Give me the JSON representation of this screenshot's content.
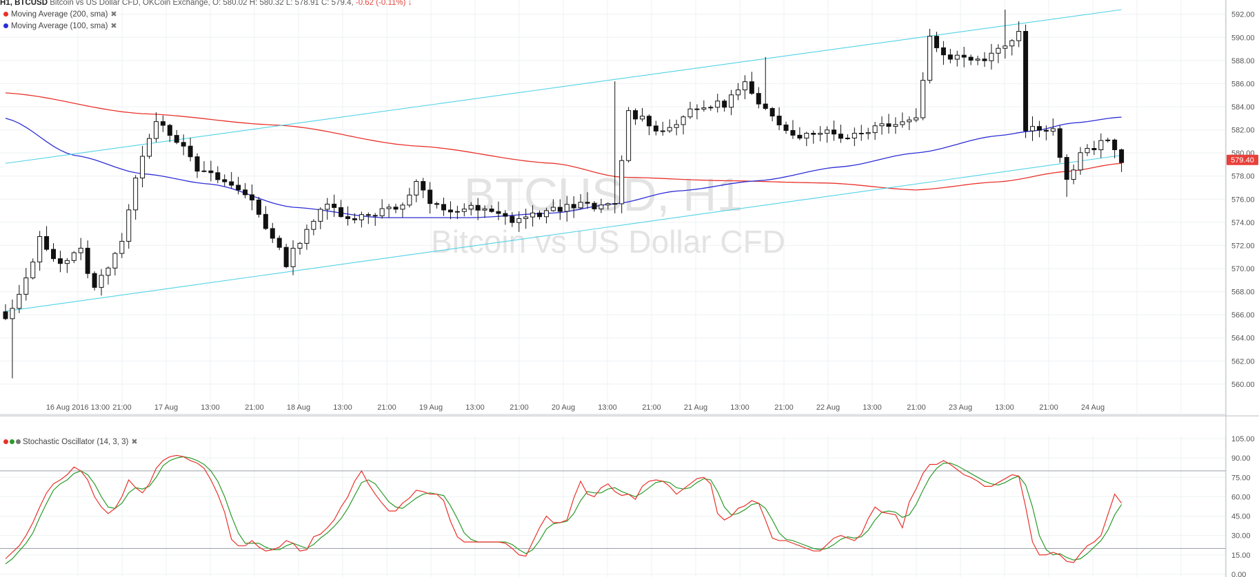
{
  "header": {
    "symbol": "H1, BTCUSD",
    "description": "Bitcoin vs US Dollar CFD, OKCoin Exchange,",
    "ohlc": "O: 580.02 H: 580.32 L: 578.91 C: 579.4,",
    "change": "-0.62 (-0.11%)",
    "change_arrow": "↓"
  },
  "legend": {
    "ma200": "Moving Average (200, sma)",
    "ma100": "Moving Average (100, sma)",
    "stoch": "Stochastic Oscillator (14, 3, 3)",
    "remove_glyph": "✖"
  },
  "watermark": {
    "line1": "BTCUSD, H1",
    "line2": "Bitcoin vs US Dollar CFD"
  },
  "price_tag": "579.40",
  "colors": {
    "ma200": "#e8312a",
    "ma100": "#2b2bd6",
    "channel": "#4fd2e6",
    "stoch_k": "#e8312a",
    "stoch_d": "#2a9a2a",
    "price_tag": "#e8403a",
    "bull_body": "#ffffff",
    "bear_body": "#111111",
    "grid": "#eef0f3"
  },
  "chart_data": [
    {
      "type": "candlestick",
      "y_ticks": [
        "592.00",
        "590.00",
        "588.00",
        "586.00",
        "584.00",
        "582.00",
        "580.00",
        "578.00",
        "576.00",
        "574.00",
        "572.00",
        "570.00",
        "568.00",
        "566.00",
        "564.00",
        "562.00",
        "560.00"
      ],
      "x_ticks": [
        "16 Aug 2016 13:00",
        "21:00",
        "17 Aug",
        "13:00",
        "21:00",
        "18 Aug",
        "13:00",
        "21:00",
        "19 Aug",
        "13:00",
        "21:00",
        "20 Aug",
        "13:00",
        "21:00",
        "21 Aug",
        "13:00",
        "21:00",
        "22 Aug",
        "13:00",
        "21:00",
        "23 Aug",
        "13:00",
        "21:00",
        "24 Aug"
      ],
      "ylim": [
        559,
        592.5
      ],
      "anchors": [
        [
          0,
          565.5
        ],
        [
          2,
          567.5
        ],
        [
          5,
          572.5
        ],
        [
          8,
          570.5
        ],
        [
          11,
          571.5
        ],
        [
          13,
          568.2
        ],
        [
          17,
          572.5
        ],
        [
          20,
          580
        ],
        [
          22,
          583
        ],
        [
          25,
          581.2
        ],
        [
          28,
          578.5
        ],
        [
          32,
          577.5
        ],
        [
          36,
          576
        ],
        [
          39,
          572.5
        ],
        [
          41,
          570.5
        ],
        [
          44,
          573.5
        ],
        [
          47,
          575.5
        ],
        [
          50,
          574.5
        ],
        [
          53,
          574.5
        ],
        [
          56,
          575.5
        ],
        [
          58,
          575.3
        ],
        [
          60,
          577.5
        ],
        [
          62,
          575.5
        ],
        [
          65,
          575
        ],
        [
          68,
          575.2
        ],
        [
          71,
          574.8
        ],
        [
          74,
          574.2
        ],
        [
          77,
          574.6
        ],
        [
          80,
          575
        ],
        [
          83,
          575.6
        ],
        [
          86,
          575.2
        ],
        [
          89,
          575.5
        ],
        [
          91,
          583.5
        ],
        [
          93,
          583
        ],
        [
          96,
          581.8
        ],
        [
          99,
          583.2
        ],
        [
          102,
          584
        ],
        [
          105,
          584.3
        ],
        [
          108,
          586
        ],
        [
          110,
          584
        ],
        [
          113,
          582.6
        ],
        [
          116,
          581.5
        ],
        [
          119,
          582
        ],
        [
          122,
          581.4
        ],
        [
          125,
          581.8
        ],
        [
          128,
          582.5
        ],
        [
          131,
          582.8
        ],
        [
          133,
          583
        ],
        [
          135,
          590
        ],
        [
          137,
          588.5
        ],
        [
          140,
          588.2
        ],
        [
          143,
          588.3
        ],
        [
          146,
          589.5
        ],
        [
          148,
          590.5
        ],
        [
          149,
          582
        ],
        [
          151,
          582.3
        ],
        [
          153,
          582
        ],
        [
          155,
          577.5
        ],
        [
          157,
          579.8
        ],
        [
          159,
          580.5
        ],
        [
          161,
          581
        ],
        [
          163,
          579.4
        ]
      ],
      "ma200": [
        [
          0,
          585.2
        ],
        [
          20,
          583.4
        ],
        [
          40,
          582.4
        ],
        [
          60,
          580.6
        ],
        [
          80,
          579.1
        ],
        [
          90,
          577.9
        ],
        [
          105,
          577.6
        ],
        [
          120,
          577.4
        ],
        [
          133,
          576.8
        ],
        [
          145,
          577.5
        ],
        [
          155,
          578.4
        ],
        [
          163,
          579.1
        ]
      ],
      "ma100": [
        [
          0,
          583
        ],
        [
          10,
          579.8
        ],
        [
          20,
          578.2
        ],
        [
          30,
          577.3
        ],
        [
          42,
          575.3
        ],
        [
          55,
          574.4
        ],
        [
          68,
          574.4
        ],
        [
          80,
          574.8
        ],
        [
          89,
          575.6
        ],
        [
          98,
          576.7
        ],
        [
          110,
          577.6
        ],
        [
          122,
          578.8
        ],
        [
          133,
          580
        ],
        [
          145,
          581.5
        ],
        [
          150,
          581.9
        ],
        [
          156,
          582.6
        ],
        [
          163,
          583.1
        ]
      ],
      "channel_upper": [
        [
          0,
          579.1
        ],
        [
          163,
          592.4
        ]
      ],
      "channel_lower": [
        [
          0,
          566.3
        ],
        [
          163,
          579.8
        ]
      ]
    },
    {
      "type": "line",
      "name": "Stochastic Oscillator (14, 3, 3)",
      "y_ticks": [
        "105.00",
        "90.00",
        "75.00",
        "60.00",
        "45.00",
        "30.00",
        "15.00",
        "0.00"
      ],
      "ylim": [
        0,
        105
      ],
      "bands": [
        20,
        80
      ],
      "x": [
        0,
        1,
        2,
        3,
        4,
        5,
        6,
        7,
        8,
        9,
        10,
        11,
        12,
        13,
        14,
        15,
        16,
        17,
        18,
        19,
        20,
        21,
        22,
        23,
        24,
        25,
        26,
        27,
        28,
        29,
        30,
        31,
        32,
        33,
        34,
        35,
        36,
        37,
        38,
        39,
        40,
        41,
        42,
        43,
        44,
        45,
        46,
        47,
        48,
        49,
        50,
        51,
        52,
        53,
        54,
        55,
        56,
        57,
        58,
        59,
        60,
        61,
        62,
        63,
        64,
        65,
        66,
        67,
        68,
        69,
        70,
        71,
        72,
        73,
        74,
        75,
        76,
        77,
        78,
        79,
        80,
        81,
        82,
        83,
        84,
        85,
        86,
        87,
        88,
        89,
        90,
        91,
        92,
        93,
        94,
        95,
        96,
        97,
        98,
        99,
        100,
        101,
        102,
        103,
        104,
        105,
        106,
        107,
        108,
        109,
        110,
        111,
        112,
        113,
        114,
        115,
        116,
        117,
        118,
        119,
        120,
        121,
        122,
        123,
        124,
        125,
        126,
        127,
        128,
        129,
        130,
        131,
        132,
        133,
        134,
        135,
        136,
        137,
        138,
        139,
        140,
        141,
        142,
        143,
        144,
        145,
        146,
        147,
        148,
        149,
        150,
        151,
        152,
        153,
        154,
        155,
        156,
        157,
        158,
        159,
        160,
        161,
        162,
        163
      ],
      "k": [
        12,
        17,
        22,
        30,
        40,
        52,
        63,
        70,
        73,
        77,
        83,
        80,
        73,
        60,
        52,
        47,
        51,
        60,
        73,
        67,
        63,
        70,
        82,
        88,
        91,
        92,
        91,
        88,
        86,
        82,
        73,
        62,
        48,
        27,
        22,
        22,
        26,
        21,
        18,
        19,
        21,
        26,
        24,
        18,
        19,
        29,
        31,
        36,
        42,
        52,
        60,
        72,
        80,
        70,
        62,
        55,
        49,
        49,
        55,
        59,
        65,
        64,
        62,
        62,
        57,
        41,
        29,
        25,
        25,
        25,
        25,
        25,
        25,
        24,
        20,
        15,
        14,
        25,
        36,
        45,
        40,
        40,
        42,
        59,
        72,
        62,
        60,
        67,
        70,
        64,
        61,
        62,
        58,
        68,
        72,
        73,
        72,
        68,
        62,
        66,
        70,
        74,
        75,
        70,
        47,
        42,
        45,
        51,
        53,
        57,
        55,
        42,
        28,
        26,
        26,
        24,
        22,
        20,
        18,
        18,
        23,
        28,
        30,
        28,
        26,
        31,
        43,
        52,
        48,
        47,
        46,
        36,
        56,
        66,
        78,
        85,
        85,
        88,
        85,
        81,
        77,
        75,
        72,
        68,
        68,
        71,
        74,
        77,
        76,
        52,
        25,
        15,
        15,
        17,
        15,
        10,
        9,
        16,
        22,
        25,
        30,
        46,
        62,
        55
      ],
      "d": [
        8,
        12,
        18,
        24,
        32,
        44,
        55,
        65,
        70,
        73,
        78,
        80,
        77,
        70,
        60,
        52,
        51,
        55,
        63,
        67,
        66,
        68,
        75,
        84,
        88,
        90,
        91,
        90,
        88,
        85,
        80,
        72,
        60,
        45,
        32,
        24,
        24,
        24,
        21,
        19,
        19,
        22,
        24,
        22,
        20,
        23,
        28,
        32,
        37,
        43,
        51,
        61,
        71,
        73,
        70,
        63,
        56,
        52,
        51,
        55,
        59,
        62,
        63,
        62,
        61,
        53,
        43,
        32,
        27,
        25,
        25,
        25,
        25,
        25,
        23,
        19,
        16,
        19,
        26,
        35,
        39,
        40,
        41,
        47,
        57,
        64,
        63,
        63,
        66,
        67,
        64,
        62,
        60,
        63,
        67,
        71,
        72,
        71,
        67,
        66,
        67,
        71,
        74,
        73,
        64,
        52,
        46,
        47,
        50,
        54,
        55,
        51,
        42,
        32,
        27,
        26,
        24,
        22,
        20,
        19,
        20,
        23,
        27,
        29,
        28,
        29,
        34,
        42,
        48,
        49,
        48,
        44,
        46,
        54,
        65,
        75,
        82,
        86,
        86,
        84,
        81,
        78,
        75,
        72,
        70,
        69,
        71,
        74,
        76,
        69,
        52,
        30,
        19,
        15,
        16,
        13,
        11,
        12,
        16,
        21,
        26,
        34,
        46,
        54
      ]
    }
  ]
}
